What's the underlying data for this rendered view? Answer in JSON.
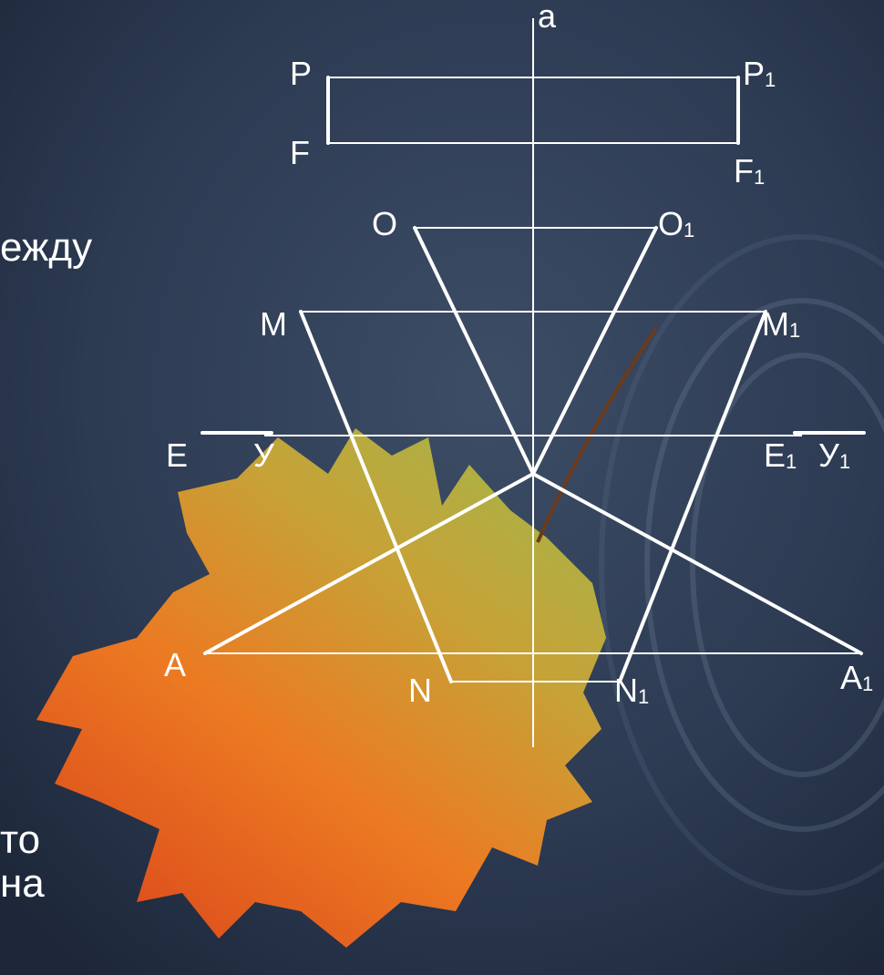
{
  "colors": {
    "background": "#2c3a52",
    "lines": "#ffffff",
    "leaf_orange": "#e8601c",
    "leaf_yellow": "#c9b23a"
  },
  "side_text": [
    "ежду",
    "то",
    "на"
  ],
  "labels": {
    "a": "a",
    "P": "P",
    "P1": "P",
    "F": "F",
    "F1": "F",
    "O": "O",
    "O1": "O",
    "M": "M",
    "M1": "M",
    "E": "E",
    "Y": "У",
    "E1": "E",
    "Y1": "У",
    "A": "A",
    "A1": "A",
    "N": "N",
    "N1": "N"
  },
  "subscript": "1"
}
